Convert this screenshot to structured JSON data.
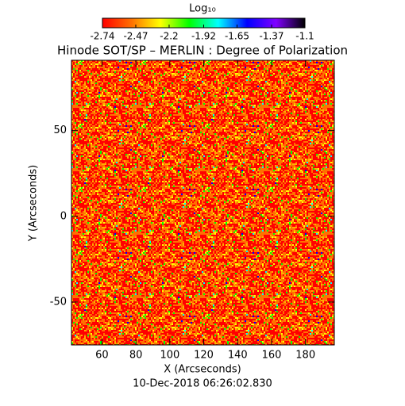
{
  "chart_data": {
    "type": "heatmap",
    "title": "Hinode SOT/SP – MERLIN : Degree of Polarization",
    "colorbar_label": "Log₁₀",
    "colorbar_lim": [
      -2.74,
      -1.1
    ],
    "colorbar_ticks": [
      -2.74,
      -2.47,
      -2.2,
      -1.92,
      -1.65,
      -1.37,
      -1.1
    ],
    "colorscale": [
      "#ff0000",
      "#ff7000",
      "#ffff00",
      "#00ff00",
      "#00ffff",
      "#0000ff",
      "#8000ff",
      "#000000"
    ],
    "xlabel": "X (Arcseconds)",
    "ylabel": "Y (Arcseconds)",
    "xlim": [
      42,
      197
    ],
    "xticks": [
      60,
      80,
      100,
      120,
      140,
      160,
      180
    ],
    "ylim": [
      -75,
      91
    ],
    "yticks": [
      -50,
      0,
      50
    ],
    "footer": "10-Dec-2018 06:26:02.830"
  }
}
